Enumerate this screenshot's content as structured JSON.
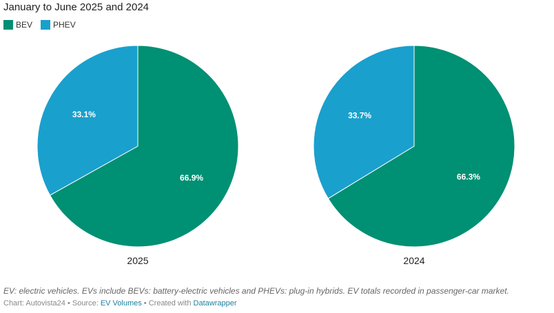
{
  "chart_data": {
    "type": "pie",
    "title": "January to June 2025 and 2024",
    "legend": {
      "position": "top-left",
      "entries": [
        "BEV",
        "PHEV"
      ]
    },
    "colors": {
      "BEV": "#009073",
      "PHEV": "#1aa0cd"
    },
    "pies": [
      {
        "label": "2025",
        "slices": [
          {
            "name": "BEV",
            "value": 66.9,
            "text": "66.9%"
          },
          {
            "name": "PHEV",
            "value": 33.1,
            "text": "33.1%"
          }
        ]
      },
      {
        "label": "2024",
        "slices": [
          {
            "name": "BEV",
            "value": 66.3,
            "text": "66.3%"
          },
          {
            "name": "PHEV",
            "value": 33.7,
            "text": "33.7%"
          }
        ]
      }
    ]
  },
  "notes": "EV: electric vehicles. EVs include BEVs: battery-electric vehicles and PHEVs: plug-in hybrids. EV totals recorded in passenger-car market.",
  "byline": {
    "chart": "Chart: Autovista24",
    "sep": " • ",
    "source_prefix": "Source: ",
    "source": "EV Volumes",
    "created": "Created with ",
    "tool": "Datawrapper"
  }
}
